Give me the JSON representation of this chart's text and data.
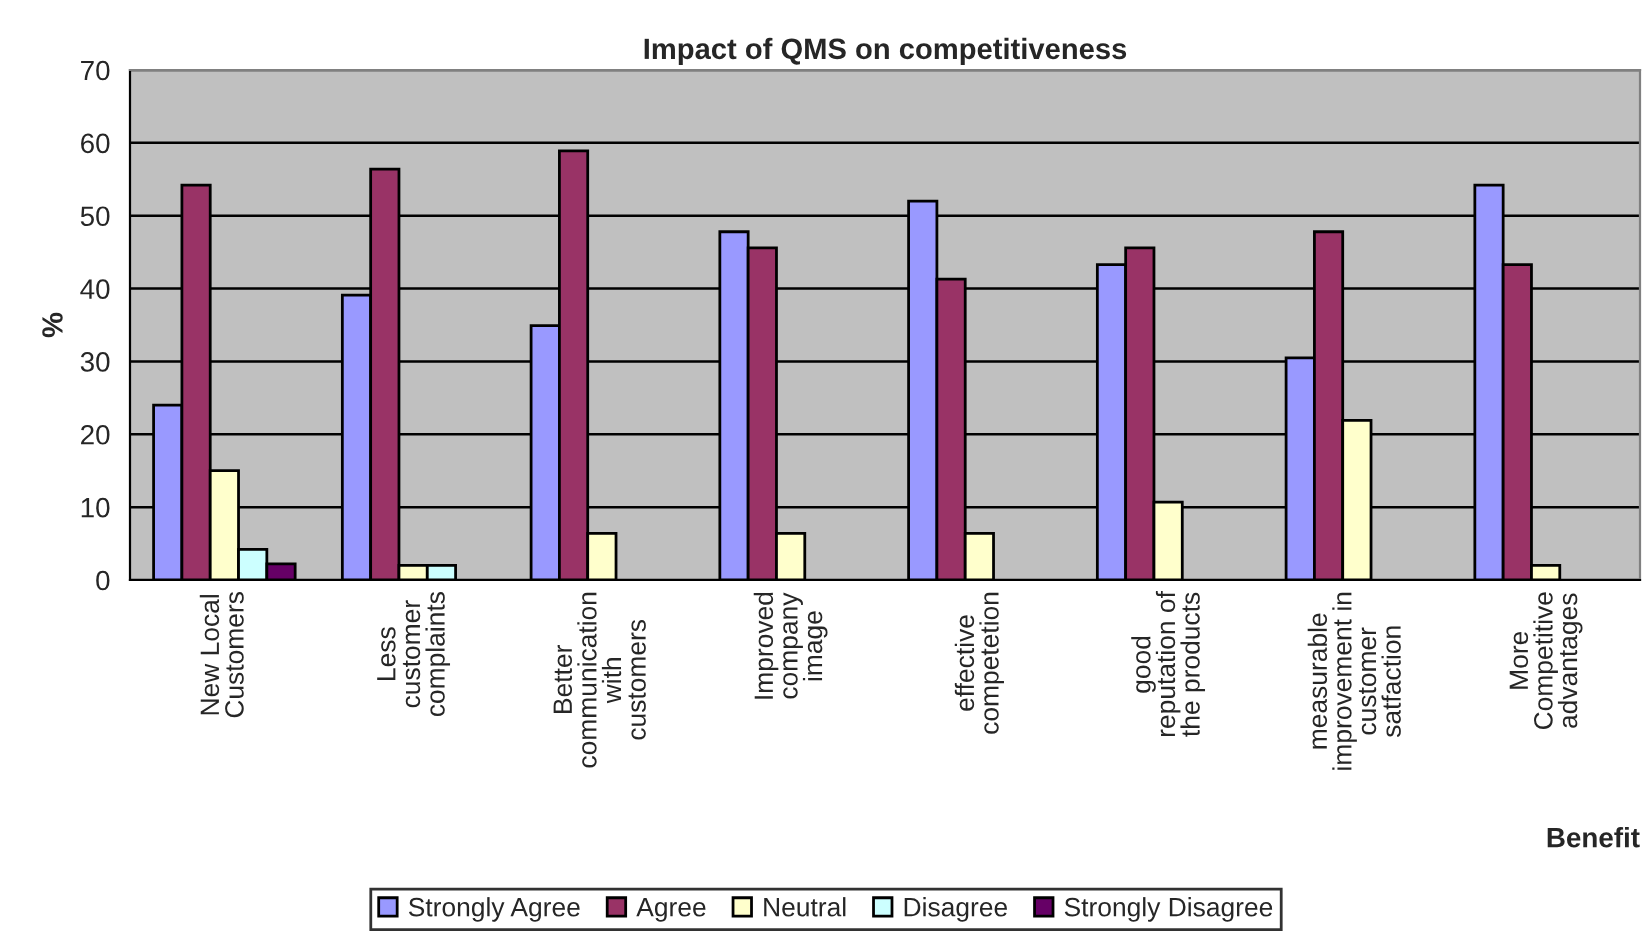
{
  "chart_data": {
    "type": "bar",
    "title": "Impact of QMS on competitiveness",
    "xlabel": "Benefit",
    "ylabel": "%",
    "categories": [
      "New Local\nCustomers",
      "Less\ncustomer\ncomplaints",
      "Better\ncommunication\nwith\ncustomers",
      "Improved\ncompany\nimage",
      "effective\ncompetetion",
      "good\nreputation of\nthe products",
      "measurable\nimprovement in\ncustomer\nsatfaction",
      "More\nCompetitive\nadvantages"
    ],
    "series": [
      {
        "name": "Strongly Agree",
        "color": "#9999ff",
        "values": [
          24.0,
          39.1,
          34.9,
          47.8,
          52.0,
          43.3,
          30.5,
          54.2
        ]
      },
      {
        "name": "Agree",
        "color": "#993366",
        "values": [
          54.2,
          56.4,
          58.9,
          45.6,
          41.3,
          45.6,
          47.8,
          43.3
        ]
      },
      {
        "name": "Neutral",
        "color": "#ffffcc",
        "values": [
          15.0,
          2.0,
          6.4,
          6.4,
          6.4,
          10.7,
          21.9,
          2.0
        ]
      },
      {
        "name": "Disagree",
        "color": "#ccffff",
        "values": [
          4.2,
          2.0,
          null,
          null,
          null,
          null,
          null,
          null
        ]
      },
      {
        "name": "Strongly Disagree",
        "color": "#660066",
        "values": [
          2.2,
          null,
          null,
          null,
          null,
          null,
          null,
          null
        ]
      }
    ],
    "ylim": [
      0,
      70
    ],
    "yticks": [
      0,
      10,
      20,
      30,
      40,
      50,
      60,
      70
    ],
    "grid": "y",
    "legend": "bottom"
  }
}
